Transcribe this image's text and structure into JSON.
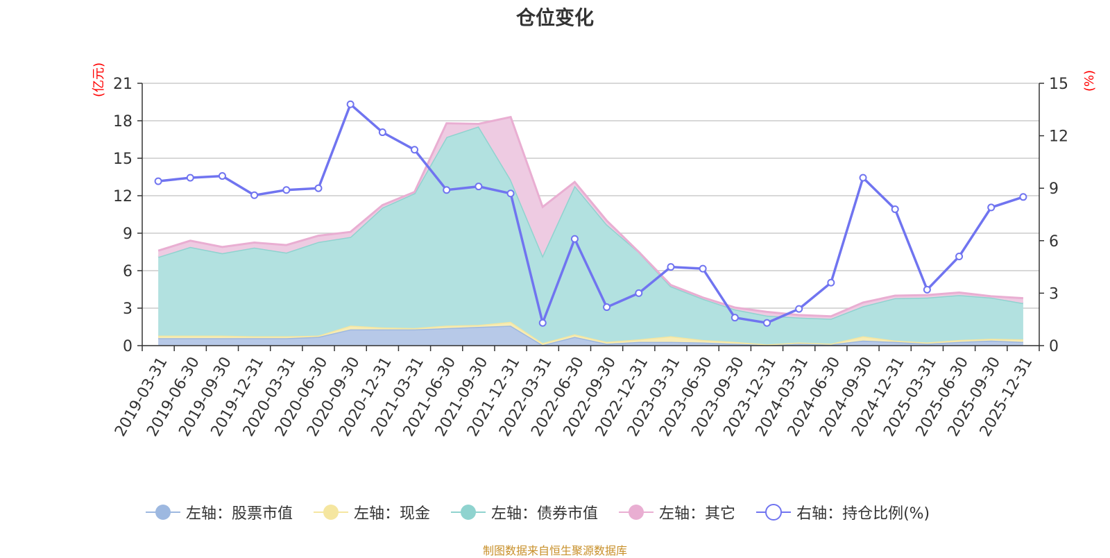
{
  "chart_data": {
    "type": "area",
    "title": "仓位变化",
    "left_axis_unit": "(亿元)",
    "right_axis_unit": "(%)",
    "left_ylim": [
      0,
      21
    ],
    "left_ticks": [
      "0",
      "3",
      "6",
      "9",
      "12",
      "15",
      "18",
      "21"
    ],
    "right_ylim": [
      0,
      15
    ],
    "right_ticks": [
      "0",
      "3",
      "6",
      "9",
      "12",
      "15"
    ],
    "categories": [
      "2019-03-31",
      "2019-06-30",
      "2019-09-30",
      "2019-12-31",
      "2020-03-31",
      "2020-06-30",
      "2020-09-30",
      "2020-12-31",
      "2021-03-31",
      "2021-06-30",
      "2021-09-30",
      "2021-12-31",
      "2022-03-31",
      "2022-06-30",
      "2022-09-30",
      "2022-12-31",
      "2023-03-31",
      "2023-06-30",
      "2023-09-30",
      "2023-12-31",
      "2024-03-31",
      "2024-06-30",
      "2024-09-30",
      "2024-12-31",
      "2025-03-31",
      "2025-06-30",
      "2025-09-30",
      "2025-12-31"
    ],
    "series": [
      {
        "name": "左轴：股票市值",
        "axis": "left",
        "color": "#9db8e0",
        "fill": "#b7c9e8",
        "values": [
          0.6,
          0.6,
          0.6,
          0.6,
          0.6,
          0.7,
          1.3,
          1.3,
          1.3,
          1.4,
          1.5,
          1.6,
          0.05,
          0.7,
          0.15,
          0.3,
          0.3,
          0.25,
          0.15,
          0.05,
          0.15,
          0.1,
          0.4,
          0.3,
          0.15,
          0.3,
          0.4,
          0.3
        ]
      },
      {
        "name": "左轴：现金",
        "axis": "left",
        "color": "#f5e6a0",
        "fill": "#f7ecb5",
        "values": [
          0.2,
          0.2,
          0.2,
          0.15,
          0.15,
          0.1,
          0.3,
          0.15,
          0.1,
          0.2,
          0.15,
          0.3,
          0.15,
          0.2,
          0.15,
          0.2,
          0.45,
          0.2,
          0.15,
          0.05,
          0.1,
          0.05,
          0.35,
          0.1,
          0.1,
          0.15,
          0.15,
          0.2
        ]
      },
      {
        "name": "左轴：债券市值",
        "axis": "left",
        "color": "#8fd3cf",
        "fill": "#b2e1e0",
        "values": [
          6.3,
          7.1,
          6.6,
          7.1,
          6.7,
          7.5,
          7.1,
          9.6,
          10.8,
          15.1,
          15.9,
          11.4,
          7.0,
          11.9,
          9.4,
          7.0,
          4.0,
          3.3,
          2.6,
          2.3,
          2.0,
          2.0,
          2.4,
          3.4,
          3.6,
          3.6,
          3.3,
          2.9
        ]
      },
      {
        "name": "左轴：其它",
        "axis": "left",
        "color": "#e9aed2",
        "fill": "#eecbe2",
        "values": [
          0.5,
          0.5,
          0.5,
          0.4,
          0.6,
          0.5,
          0.4,
          0.2,
          0.1,
          1.1,
          0.2,
          5.0,
          3.9,
          0.3,
          0.3,
          0.0,
          0.1,
          0.1,
          0.15,
          0.3,
          0.2,
          0.2,
          0.3,
          0.2,
          0.2,
          0.2,
          0.1,
          0.4
        ]
      },
      {
        "name": "右轴：持仓比例(%)",
        "axis": "right",
        "color": "#7074f0",
        "values": [
          9.4,
          9.6,
          9.7,
          8.6,
          8.9,
          9.0,
          13.8,
          12.2,
          11.2,
          8.9,
          9.1,
          8.7,
          1.3,
          6.1,
          2.2,
          3.0,
          4.5,
          4.4,
          1.6,
          1.3,
          2.1,
          3.6,
          9.6,
          7.8,
          3.2,
          5.1,
          7.9,
          8.5
        ]
      }
    ],
    "legend_position": "bottom"
  },
  "source_text": "制图数据来自恒生聚源数据库"
}
